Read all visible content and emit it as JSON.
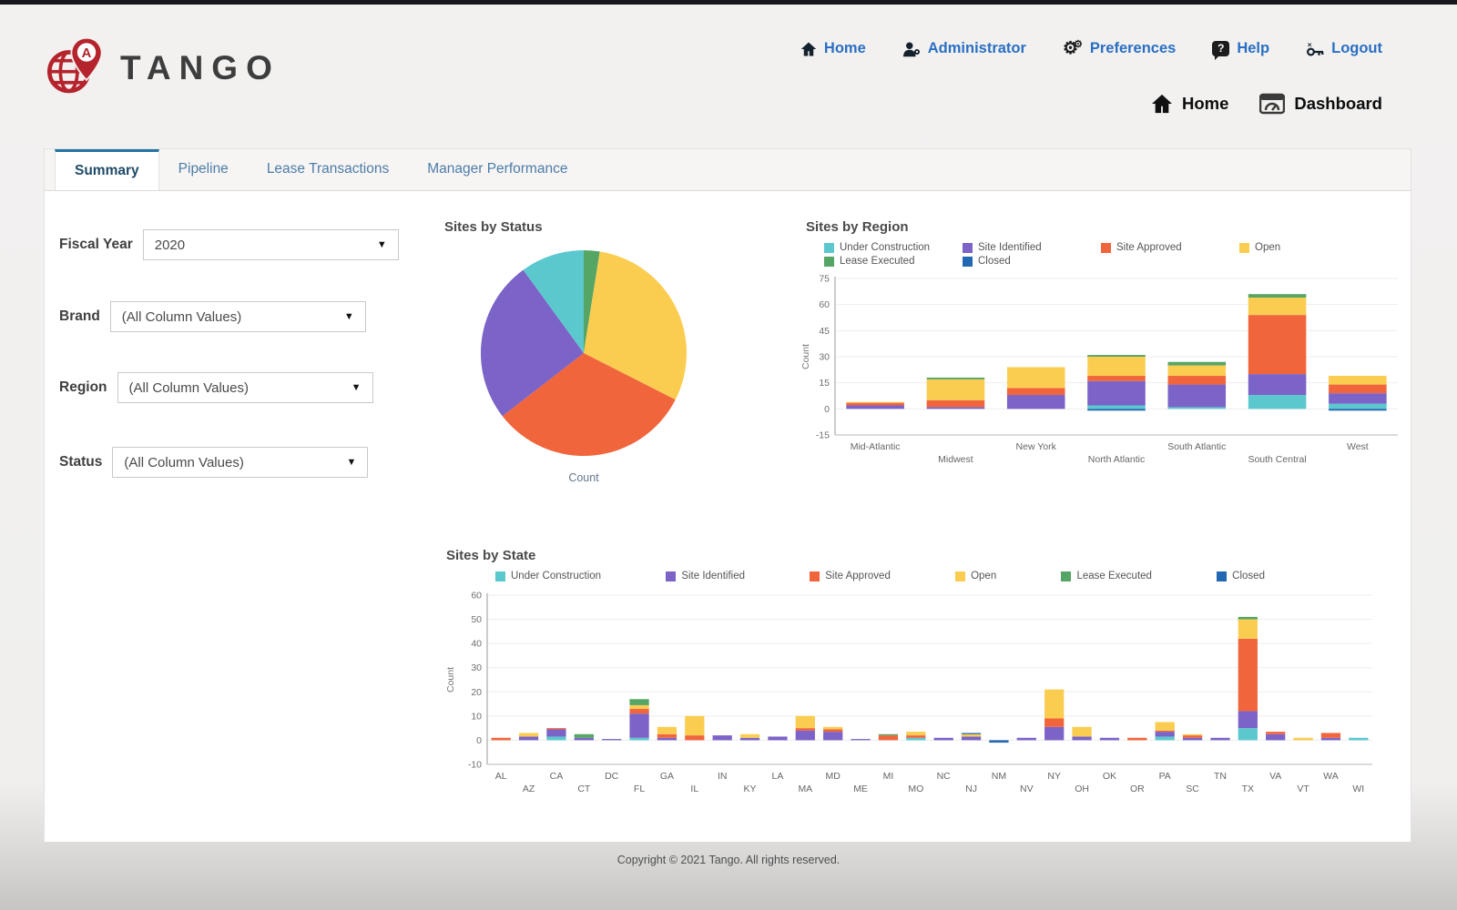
{
  "logo": {
    "text": "TANGO"
  },
  "top_nav": {
    "items": [
      {
        "label": "Home",
        "icon": "home-icon"
      },
      {
        "label": "Administrator",
        "icon": "administrator-icon"
      },
      {
        "label": "Preferences",
        "icon": "preferences-icon"
      },
      {
        "label": "Help",
        "icon": "help-icon"
      },
      {
        "label": "Logout",
        "icon": "logout-icon"
      }
    ]
  },
  "breadcrumb": {
    "items": [
      {
        "label": "Home",
        "icon": "home-icon"
      },
      {
        "label": "Dashboard",
        "icon": "dashboard-icon"
      }
    ]
  },
  "tabs": [
    {
      "label": "Summary",
      "active": true
    },
    {
      "label": "Pipeline",
      "active": false
    },
    {
      "label": "Lease Transactions",
      "active": false
    },
    {
      "label": "Manager Performance",
      "active": false
    }
  ],
  "filters": [
    {
      "label": "Fiscal Year",
      "value": "2020"
    },
    {
      "label": "Brand",
      "value": "(All Column Values)"
    },
    {
      "label": "Region",
      "value": "(All Column Values)"
    },
    {
      "label": "Status",
      "value": "(All Column Values)"
    }
  ],
  "status_colors": {
    "Under Construction": "#5BC8CE",
    "Site Identified": "#7B63C7",
    "Site Approved": "#F0653C",
    "Open": "#FACD51",
    "Lease Executed": "#55A564",
    "Closed": "#2268B2"
  },
  "chart_data": [
    {
      "type": "pie",
      "title": "Sites by Status",
      "xlabel": "Count",
      "slices": [
        {
          "label": "Lease Executed",
          "percent": 2.5
        },
        {
          "label": "Open",
          "percent": 30
        },
        {
          "label": "Site Approved",
          "percent": 32
        },
        {
          "label": "Site Identified",
          "percent": 25.5
        },
        {
          "label": "Under Construction",
          "percent": 10
        }
      ]
    },
    {
      "type": "bar",
      "stacked": true,
      "title": "Sites by Region",
      "ylabel": "Count",
      "ylim": [
        -15,
        75
      ],
      "yticks": [
        -15,
        0,
        15,
        30,
        45,
        60,
        75
      ],
      "legend_position": "top",
      "grid": true,
      "categories": [
        "Mid-Atlantic",
        "Midwest",
        "New York",
        "North Atlantic",
        "South Atlantic",
        "South Central",
        "West"
      ],
      "series": [
        {
          "name": "Under Construction",
          "values": [
            0,
            0,
            0,
            2,
            1,
            8,
            3
          ]
        },
        {
          "name": "Site Identified",
          "values": [
            2,
            1,
            8,
            14,
            13,
            12,
            6
          ]
        },
        {
          "name": "Site Approved",
          "values": [
            1.5,
            4,
            4,
            3,
            5,
            34,
            5
          ]
        },
        {
          "name": "Open",
          "values": [
            0.5,
            12,
            12,
            11,
            6,
            10,
            5
          ]
        },
        {
          "name": "Lease Executed",
          "values": [
            0,
            1,
            0,
            1,
            2,
            2,
            0
          ]
        },
        {
          "name": "Closed",
          "values": [
            0,
            0,
            0,
            -1,
            0,
            0,
            -1
          ]
        }
      ]
    },
    {
      "type": "bar",
      "stacked": true,
      "title": "Sites by State",
      "ylabel": "Count",
      "ylim": [
        -10,
        60
      ],
      "yticks": [
        -10,
        0,
        10,
        20,
        30,
        40,
        50,
        60
      ],
      "legend_position": "top",
      "grid": true,
      "categories": [
        "AL",
        "AZ",
        "CA",
        "CT",
        "DC",
        "FL",
        "GA",
        "IL",
        "IN",
        "KY",
        "LA",
        "MA",
        "MD",
        "ME",
        "MI",
        "MO",
        "NC",
        "NJ",
        "NM",
        "NV",
        "NY",
        "OH",
        "OK",
        "OR",
        "PA",
        "SC",
        "TN",
        "TX",
        "VA",
        "VT",
        "WA",
        "WI"
      ],
      "series": [
        {
          "name": "Under Construction",
          "values": [
            0,
            0,
            1.5,
            0,
            0,
            1,
            0,
            0,
            0,
            0,
            0,
            0,
            0,
            0,
            0,
            1,
            0,
            0,
            0,
            0,
            0,
            0,
            0,
            0,
            1.5,
            0,
            0,
            5,
            0,
            0,
            0,
            1
          ]
        },
        {
          "name": "Site Identified",
          "values": [
            0,
            1.5,
            3,
            1,
            0.5,
            10,
            1,
            0,
            2,
            1,
            1.5,
            4,
            3.5,
            0.5,
            0,
            0,
            1,
            1.5,
            0,
            1,
            5.5,
            1.5,
            1,
            0,
            2,
            1,
            1,
            7,
            2.5,
            0,
            1,
            0
          ]
        },
        {
          "name": "Site Approved",
          "values": [
            1,
            0,
            0.5,
            0,
            0,
            2,
            1.5,
            2,
            0,
            0,
            0,
            1,
            1,
            0,
            2,
            1,
            0,
            0,
            0,
            0,
            3.5,
            0,
            0,
            1,
            0.5,
            1,
            0,
            30,
            1,
            0,
            2,
            0
          ]
        },
        {
          "name": "Open",
          "values": [
            0,
            1.5,
            0,
            0,
            0,
            1.5,
            3,
            8,
            0,
            1.5,
            0,
            5,
            1,
            0,
            0,
            1.5,
            0,
            1,
            0,
            0,
            12,
            4,
            0,
            0,
            3.5,
            0.5,
            0,
            8,
            0,
            1,
            0,
            0
          ]
        },
        {
          "name": "Lease Executed",
          "values": [
            0,
            0,
            0,
            1.5,
            0,
            2.5,
            0,
            0,
            0,
            0,
            0,
            0,
            0,
            0,
            0.5,
            0,
            0,
            0,
            0,
            0,
            0,
            0,
            0,
            0,
            0,
            0,
            0,
            1,
            0,
            0,
            0,
            0
          ]
        },
        {
          "name": "Closed",
          "values": [
            0,
            0,
            0,
            0,
            0,
            0,
            0,
            0,
            0,
            0,
            0,
            0,
            0,
            0,
            0,
            0,
            0,
            0.5,
            -1,
            0,
            0,
            0,
            0,
            0,
            0,
            0,
            0,
            0,
            0,
            0,
            0,
            0
          ]
        }
      ]
    }
  ],
  "footer": {
    "text": "Copyright © 2021 Tango. All rights reserved."
  }
}
